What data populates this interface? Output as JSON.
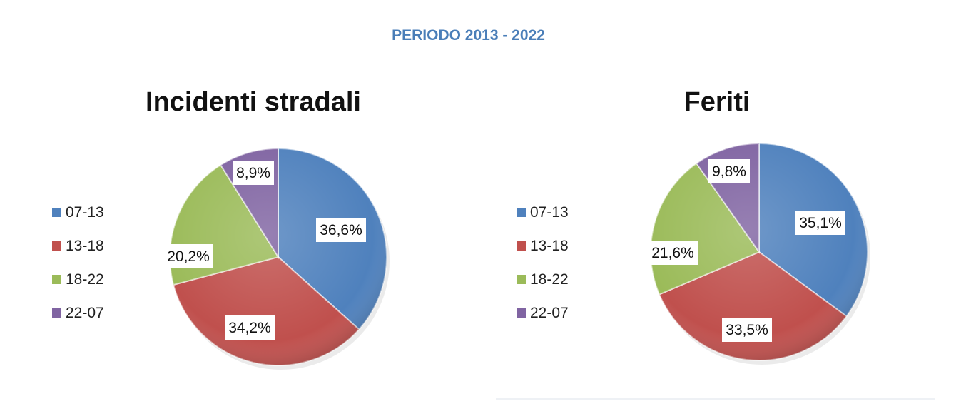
{
  "header": {
    "title": "PERIODO 2013 - 2022"
  },
  "chart_data": [
    {
      "type": "pie",
      "title": "Incidenti stradali",
      "categories": [
        "07-13",
        "13-18",
        "18-22",
        "22-07"
      ],
      "values": [
        36.6,
        34.2,
        20.2,
        8.9
      ],
      "labels": [
        "36,6%",
        "34,2%",
        "20,2%",
        "8,9%"
      ],
      "colors": [
        "#4f81bd",
        "#c0504d",
        "#9bbb59",
        "#8064a2"
      ],
      "legend_position": "left"
    },
    {
      "type": "pie",
      "title": "Feriti",
      "categories": [
        "07-13",
        "13-18",
        "18-22",
        "22-07"
      ],
      "values": [
        35.1,
        33.5,
        21.6,
        9.8
      ],
      "labels": [
        "35,1%",
        "33,5%",
        "21,6%",
        "9,8%"
      ],
      "colors": [
        "#4f81bd",
        "#c0504d",
        "#9bbb59",
        "#8064a2"
      ],
      "legend_position": "left"
    }
  ]
}
